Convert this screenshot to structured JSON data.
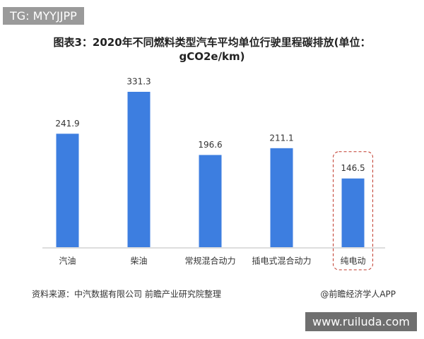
{
  "chart_data": {
    "type": "bar",
    "watermark": "TG: MYYJJPP",
    "title": "图表3：2020年不同燃料类型汽车平均单位行驶里程碳排放(单位：gCO2e/km)",
    "categories": [
      "汽油",
      "柴油",
      "常规混合动力",
      "插电式混合动力",
      "纯电动"
    ],
    "values": [
      241.9,
      331.3,
      196.6,
      211.1,
      146.5
    ],
    "color": "#3d7ee0",
    "source": "资料来源：中汽数据有限公司 前瞻产业研究院整理",
    "credit": "@前瞻经济学人APP",
    "site": "www.ruiluda.com"
  }
}
